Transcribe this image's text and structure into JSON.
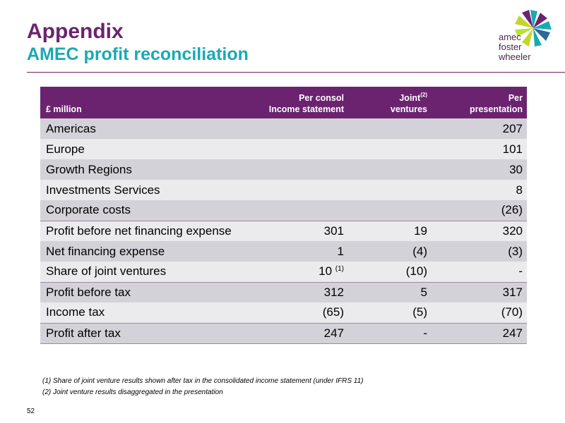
{
  "slide": {
    "title": "Appendix",
    "subtitle": "AMEC profit reconciliation",
    "page_number": "52"
  },
  "logo": {
    "line1": "amec",
    "line2": "foster",
    "line3": "wheeler"
  },
  "table": {
    "header": {
      "label": "£ million",
      "col1_line1": "Per consol",
      "col1_line2": "Income statement",
      "col2_line1": "Joint",
      "col2_sup": "(2)",
      "col2_line2": "ventures",
      "col3_line1": "Per",
      "col3_line2": "presentation"
    },
    "rows": [
      {
        "label": "Americas",
        "consol": "",
        "jv": "",
        "presentation": "207"
      },
      {
        "label": "Europe",
        "consol": "",
        "jv": "",
        "presentation": "101"
      },
      {
        "label": "Growth Regions",
        "consol": "",
        "jv": "",
        "presentation": "30"
      },
      {
        "label": "Investments Services",
        "consol": "",
        "jv": "",
        "presentation": "8"
      },
      {
        "label": "Corporate costs",
        "consol": "",
        "jv": "",
        "presentation": "(26)"
      },
      {
        "label": "Profit before net financing expense",
        "consol": "301",
        "jv": "19",
        "presentation": "320"
      },
      {
        "label": "Net financing expense",
        "consol": "1",
        "jv": "(4)",
        "presentation": "(3)"
      },
      {
        "label": "Share of joint ventures",
        "consol": "10",
        "consol_sup": "(1)",
        "jv": "(10)",
        "presentation": "-"
      },
      {
        "label": "Profit before tax",
        "consol": "312",
        "jv": "5",
        "presentation": "317"
      },
      {
        "label": "Income tax",
        "consol": "(65)",
        "jv": "(5)",
        "presentation": "(70)"
      },
      {
        "label": "Profit after tax",
        "consol": "247",
        "jv": "-",
        "presentation": "247"
      }
    ]
  },
  "footnotes": {
    "note1": "(1) Share of joint venture results shown after tax in the consolidated income statement (under IFRS 11)",
    "note2": "(2) Joint venture results disaggregated in the presentation"
  },
  "colors": {
    "brand_purple": "#6b2370",
    "brand_teal": "#1aa9b3",
    "row_shade": "#d4d2d9",
    "row_light": "#ebebee"
  }
}
